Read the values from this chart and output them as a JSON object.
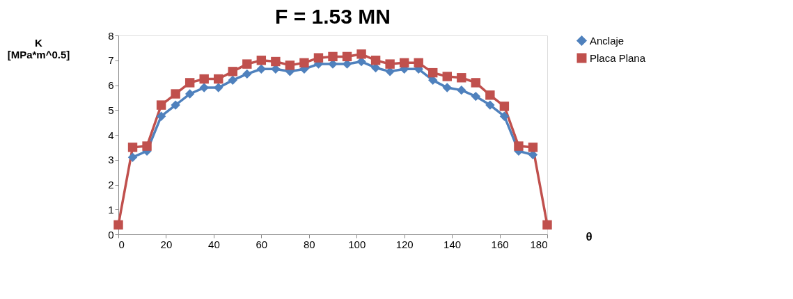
{
  "chart_data": {
    "type": "line",
    "title": "F = 1.53 MN",
    "xlabel": "θ",
    "ylabel": "K\n[MPa*m^0.5]",
    "x": [
      0,
      6,
      12,
      18,
      24,
      30,
      36,
      42,
      48,
      54,
      60,
      66,
      72,
      78,
      84,
      90,
      96,
      102,
      108,
      114,
      120,
      126,
      132,
      138,
      144,
      150,
      156,
      162,
      168,
      174,
      180
    ],
    "series": [
      {
        "name": "Anclaje",
        "color": "#4f81bd",
        "marker": "diamond",
        "values": [
          null,
          3.1,
          3.35,
          4.75,
          5.2,
          5.65,
          5.9,
          5.9,
          6.2,
          6.45,
          6.65,
          6.65,
          6.55,
          6.65,
          6.85,
          6.85,
          6.85,
          6.95,
          6.7,
          6.55,
          6.65,
          6.65,
          6.2,
          5.9,
          5.8,
          5.55,
          5.2,
          4.75,
          3.35,
          3.2,
          null
        ]
      },
      {
        "name": "Placa Plana",
        "color": "#c0504d",
        "marker": "square",
        "values": [
          0.38,
          3.5,
          3.55,
          5.2,
          5.65,
          6.1,
          6.25,
          6.25,
          6.55,
          6.85,
          7.0,
          6.95,
          6.8,
          6.9,
          7.1,
          7.15,
          7.15,
          7.25,
          7.0,
          6.85,
          6.9,
          6.9,
          6.5,
          6.35,
          6.3,
          6.1,
          5.6,
          5.15,
          3.55,
          3.5,
          0.38
        ]
      }
    ],
    "xlim": [
      0,
      180
    ],
    "xticks": [
      0,
      20,
      40,
      60,
      80,
      100,
      120,
      140,
      160,
      180
    ],
    "ylim": [
      0,
      8
    ],
    "yticks": [
      0,
      1,
      2,
      3,
      4,
      5,
      6,
      7,
      8
    ],
    "grid": false,
    "legend": "right",
    "line_style": "solid"
  }
}
